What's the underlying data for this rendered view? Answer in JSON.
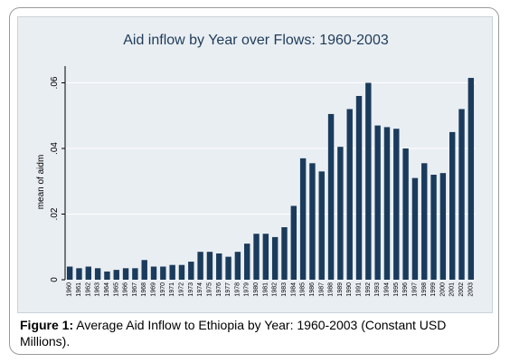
{
  "chart_data": {
    "type": "bar",
    "title": "Aid inflow by Year over Flows: 1960-2003",
    "xlabel": "",
    "ylabel": "mean of aidm",
    "yticks": [
      "0",
      ".02",
      ".04",
      ".06"
    ],
    "ylim": [
      0,
      0.064
    ],
    "grid": true,
    "bar_color": "#1a3b5c",
    "background_color": "#e9eef2",
    "categories": [
      "1960",
      "1961",
      "1962",
      "1963",
      "1964",
      "1965",
      "1966",
      "1967",
      "1968",
      "1969",
      "1970",
      "1971",
      "1972",
      "1973",
      "1974",
      "1975",
      "1976",
      "1977",
      "1978",
      "1979",
      "1980",
      "1981",
      "1982",
      "1983",
      "1984",
      "1985",
      "1986",
      "1987",
      "1988",
      "1989",
      "1990",
      "1991",
      "1992",
      "1993",
      "1994",
      "1995",
      "1996",
      "1997",
      "1998",
      "1999",
      "2000",
      "2001",
      "2002",
      "2003"
    ],
    "values": [
      0.004,
      0.0035,
      0.004,
      0.0035,
      0.0025,
      0.003,
      0.0035,
      0.0035,
      0.006,
      0.004,
      0.004,
      0.0045,
      0.0045,
      0.0055,
      0.0085,
      0.0085,
      0.008,
      0.007,
      0.0085,
      0.011,
      0.014,
      0.014,
      0.013,
      0.016,
      0.0225,
      0.037,
      0.0355,
      0.033,
      0.0505,
      0.0405,
      0.052,
      0.056,
      0.06,
      0.047,
      0.0465,
      0.046,
      0.04,
      0.031,
      0.0355,
      0.032,
      0.0325,
      0.045,
      0.052,
      0.0615
    ]
  },
  "caption": {
    "label": "Figure 1:",
    "text": " Average Aid Inflow to Ethiopia by Year: 1960-2003 (Constant USD Millions)."
  }
}
